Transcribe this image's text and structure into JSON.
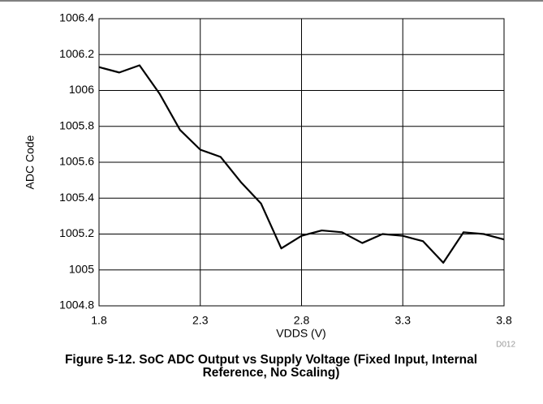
{
  "chart_data": {
    "type": "line",
    "title": "Figure 5-12. SoC ADC Output vs Supply Voltage (Fixed Input, Internal Reference, No Scaling)",
    "xlabel": "VDDS (V)",
    "ylabel": "ADC Code",
    "annotation": "D012",
    "x": [
      1.8,
      1.9,
      2.0,
      2.1,
      2.2,
      2.3,
      2.4,
      2.5,
      2.6,
      2.7,
      2.8,
      2.9,
      3.0,
      3.1,
      3.2,
      3.3,
      3.4,
      3.5,
      3.6,
      3.7,
      3.8
    ],
    "series": [
      {
        "color": "#000000",
        "values": [
          1006.13,
          1006.1,
          1006.14,
          1005.98,
          1005.78,
          1005.67,
          1005.63,
          1005.49,
          1005.37,
          1005.12,
          1005.19,
          1005.22,
          1005.21,
          1005.15,
          1005.2,
          1005.19,
          1005.16,
          1005.04,
          1005.21,
          1005.2,
          1005.17
        ]
      }
    ],
    "xlim": [
      1.8,
      3.8
    ],
    "xticks": [
      1.8,
      2.3,
      2.8,
      3.3,
      3.8
    ],
    "ylim": [
      1004.8,
      1006.4
    ],
    "yticks": [
      1004.8,
      1005,
      1005.2,
      1005.4,
      1005.6,
      1005.8,
      1006,
      1006.2,
      1006.4
    ],
    "grid": true
  }
}
